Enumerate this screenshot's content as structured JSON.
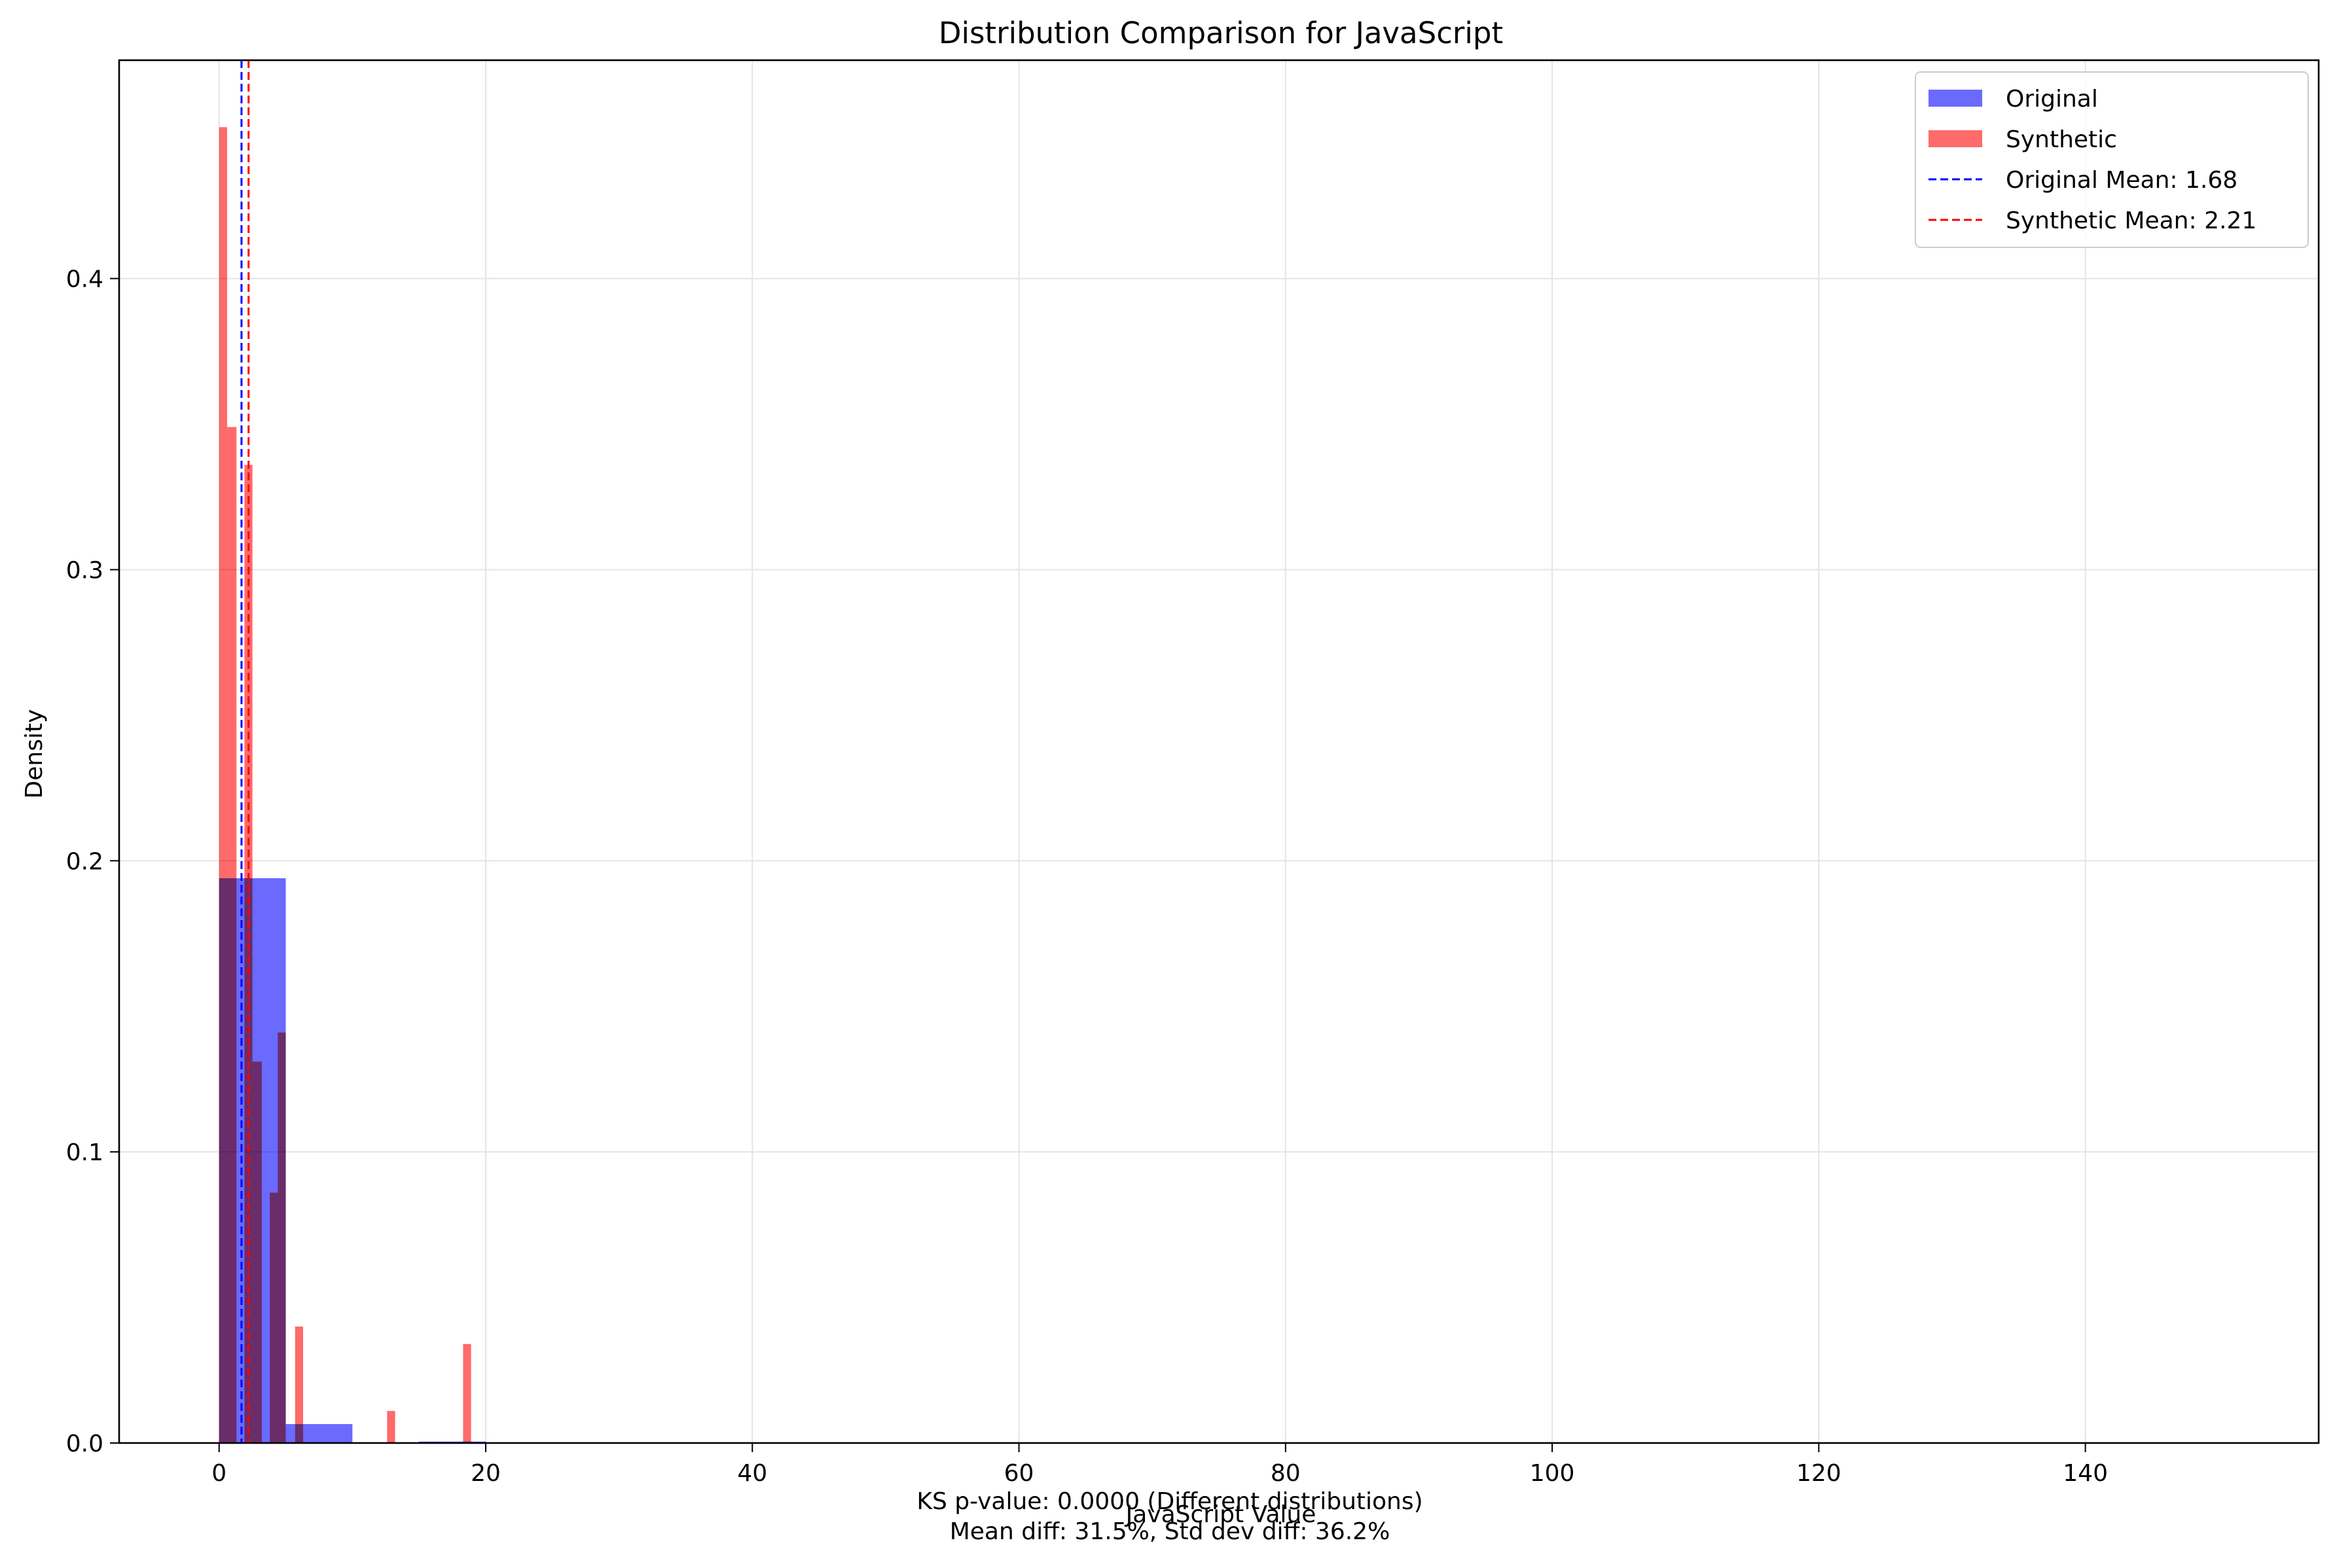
{
  "chart_data": {
    "type": "bar",
    "title": "Distribution Comparison for JavaScript",
    "xlabel": "JavaScript Value",
    "ylabel": "Density",
    "xlim": [
      -7.5,
      157.5
    ],
    "ylim": [
      0,
      0.475
    ],
    "x_ticks": [
      0,
      20,
      40,
      60,
      80,
      100,
      120,
      140
    ],
    "y_ticks": [
      0.0,
      0.1,
      0.2,
      0.3,
      0.4
    ],
    "y_tick_labels": [
      "0.0",
      "0.1",
      "0.2",
      "0.3",
      "0.4"
    ],
    "grid": true,
    "legend_position": "top-right",
    "colors": {
      "original": "#6a6aff",
      "synthetic": "#ff6a6a",
      "original_mean": "#0000ff",
      "synthetic_mean": "#ff0000"
    },
    "series": [
      {
        "name": "Original",
        "bins": [
          {
            "x0": 0,
            "x1": 5,
            "density": 0.194
          },
          {
            "x0": 5,
            "x1": 10,
            "density": 0.0065
          },
          {
            "x0": 15,
            "x1": 20,
            "density": 0.0005
          }
        ]
      },
      {
        "name": "Synthetic",
        "bins": [
          {
            "x0": 0.0,
            "x1": 0.6,
            "density": 0.452
          },
          {
            "x0": 0.6,
            "x1": 1.3,
            "density": 0.349
          },
          {
            "x0": 1.9,
            "x1": 2.5,
            "density": 0.336
          },
          {
            "x0": 2.5,
            "x1": 3.2,
            "density": 0.131
          },
          {
            "x0": 3.8,
            "x1": 4.4,
            "density": 0.086
          },
          {
            "x0": 4.4,
            "x1": 5.0,
            "density": 0.141
          },
          {
            "x0": 5.7,
            "x1": 6.3,
            "density": 0.04
          },
          {
            "x0": 12.6,
            "x1": 13.2,
            "density": 0.011
          },
          {
            "x0": 18.3,
            "x1": 18.9,
            "density": 0.034
          }
        ]
      }
    ],
    "mean_lines": [
      {
        "name": "Original Mean: 1.68",
        "value": 1.68,
        "color": "#0000ff"
      },
      {
        "name": "Synthetic Mean: 2.21",
        "value": 2.21,
        "color": "#ff0000"
      }
    ],
    "legend": [
      {
        "label": "Original",
        "kind": "patch",
        "color": "#6a6aff"
      },
      {
        "label": "Synthetic",
        "kind": "patch",
        "color": "#ff6a6a"
      },
      {
        "label": "Original Mean: 1.68",
        "kind": "line",
        "color": "#0000ff"
      },
      {
        "label": "Synthetic Mean: 2.21",
        "kind": "line",
        "color": "#ff0000"
      }
    ],
    "annotations": [
      "KS p-value: 0.0000 (Different distributions)",
      "Mean diff: 31.5%, Std dev diff: 36.2%"
    ]
  }
}
